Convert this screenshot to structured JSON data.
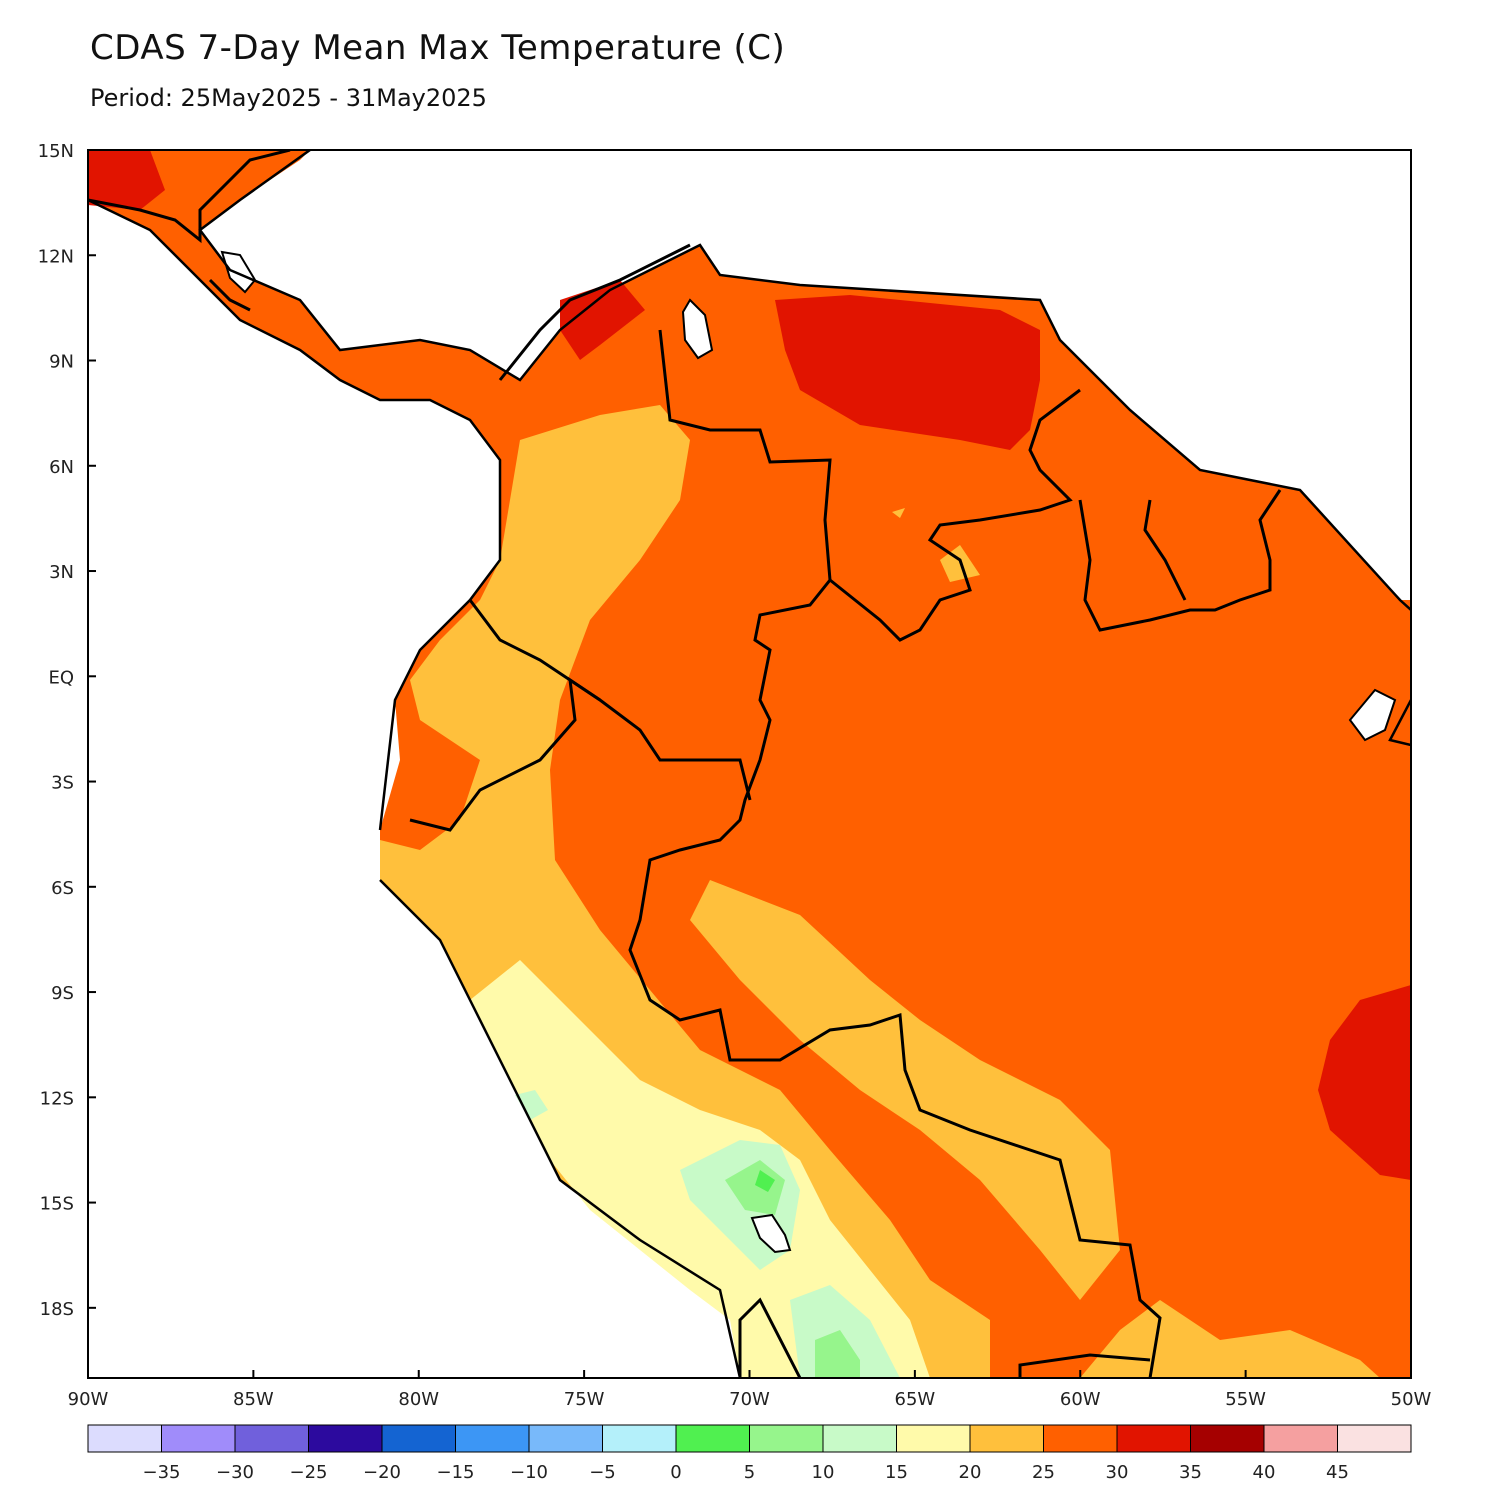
{
  "title": "CDAS 7-Day Mean Max Temperature (C)",
  "subtitle": "Period: 25May2025 - 31May2025",
  "map": {
    "lon_range": [
      -90,
      -50
    ],
    "lat_range": [
      -20,
      15
    ],
    "lat_labels": [
      {
        "value": 15,
        "text": "15N"
      },
      {
        "value": 12,
        "text": "12N"
      },
      {
        "value": 9,
        "text": "9N"
      },
      {
        "value": 6,
        "text": "6N"
      },
      {
        "value": 3,
        "text": "3N"
      },
      {
        "value": 0,
        "text": "EQ"
      },
      {
        "value": -3,
        "text": "3S"
      },
      {
        "value": -6,
        "text": "6S"
      },
      {
        "value": -9,
        "text": "9S"
      },
      {
        "value": -12,
        "text": "12S"
      },
      {
        "value": -15,
        "text": "15S"
      },
      {
        "value": -18,
        "text": "18S"
      }
    ],
    "lon_labels": [
      {
        "value": -90,
        "text": "90W"
      },
      {
        "value": -85,
        "text": "85W"
      },
      {
        "value": -80,
        "text": "80W"
      },
      {
        "value": -75,
        "text": "75W"
      },
      {
        "value": -70,
        "text": "70W"
      },
      {
        "value": -65,
        "text": "65W"
      },
      {
        "value": -60,
        "text": "60W"
      },
      {
        "value": -55,
        "text": "55W"
      },
      {
        "value": -50,
        "text": "50W"
      }
    ]
  },
  "colorbar": {
    "colors": [
      "#dcdcfe",
      "#a08cfa",
      "#7060dc",
      "#2c0a9e",
      "#1464d2",
      "#3c96f5",
      "#78b9fa",
      "#b4f0fa",
      "#50f050",
      "#96f58c",
      "#c8fac8",
      "#fffaaa",
      "#ffc03c",
      "#ff6000",
      "#e11400",
      "#a50000",
      "#f5a0a0",
      "#fae1e1"
    ],
    "labels": [
      "-35",
      "-30",
      "-25",
      "-20",
      "-15",
      "-10",
      "-5",
      "0",
      "5",
      "10",
      "15",
      "20",
      "25",
      "30",
      "35",
      "40",
      "45"
    ]
  }
}
